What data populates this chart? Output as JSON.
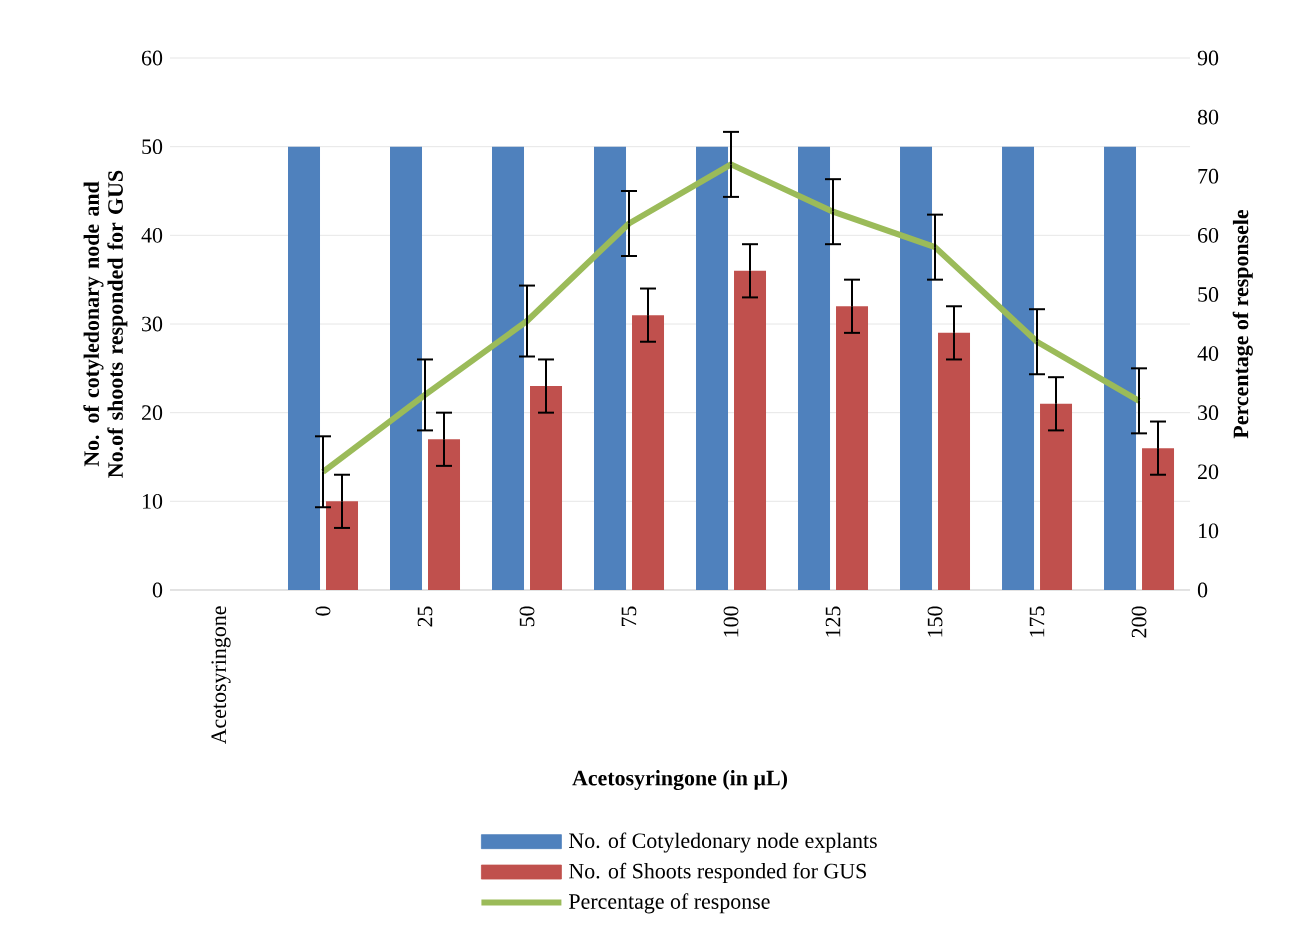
{
  "chart_data": {
    "type": "bar",
    "categories": [
      "Acetosyringone",
      "0",
      "25",
      "50",
      "75",
      "100",
      "125",
      "150",
      "175",
      "200"
    ],
    "series": [
      {
        "name": "No. of Cotyledonary node explants",
        "color": "#4f81bd",
        "values": [
          null,
          50,
          50,
          50,
          50,
          50,
          50,
          50,
          50,
          50
        ]
      },
      {
        "name": "No. of Shoots responded for GUS",
        "color": "#c0504d",
        "values": [
          null,
          10,
          17,
          23,
          31,
          36,
          32,
          29,
          21,
          16
        ],
        "errors": [
          null,
          3,
          3,
          3,
          3,
          3,
          3,
          3,
          3,
          3
        ]
      },
      {
        "name": "Percentage of response",
        "color": "#9bbb59",
        "type": "line",
        "axis": "y2",
        "values": [
          null,
          20,
          33,
          45.5,
          62,
          72,
          64,
          58,
          42,
          32
        ],
        "errors": [
          null,
          6,
          6,
          6,
          5.5,
          5.5,
          5.5,
          5.5,
          5.5,
          5.5
        ]
      }
    ],
    "xlabel": "Acetosyringone (in µL)",
    "ylabel": "No. of cotyledonary node and No.of shoots responded for GUS",
    "y2label": "Percentage of responsele",
    "ylim": [
      0,
      60
    ],
    "yticks": [
      0,
      10,
      20,
      30,
      40,
      50,
      60
    ],
    "y2lim": [
      0,
      90
    ],
    "y2ticks": [
      0,
      10,
      20,
      30,
      40,
      50,
      60,
      70,
      80,
      90
    ],
    "grid": "y",
    "legend": "bottom"
  }
}
